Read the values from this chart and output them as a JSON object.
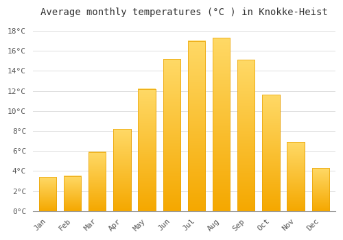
{
  "title": "Average monthly temperatures (°C ) in Knokke-Heist",
  "months": [
    "Jan",
    "Feb",
    "Mar",
    "Apr",
    "May",
    "Jun",
    "Jul",
    "Aug",
    "Sep",
    "Oct",
    "Nov",
    "Dec"
  ],
  "values": [
    3.4,
    3.5,
    5.9,
    8.2,
    12.2,
    15.2,
    17.0,
    17.3,
    15.1,
    11.6,
    6.9,
    4.3
  ],
  "bar_color_bottom": "#F5A800",
  "bar_color_top": "#FFD966",
  "bar_edge_color": "#E8A000",
  "background_color": "#FFFFFF",
  "grid_color": "#DDDDDD",
  "text_color": "#555555",
  "ylim": [
    0,
    19
  ],
  "yticks": [
    0,
    2,
    4,
    6,
    8,
    10,
    12,
    14,
    16,
    18
  ],
  "title_fontsize": 10,
  "tick_fontsize": 8,
  "font_family": "monospace",
  "bar_width": 0.7
}
